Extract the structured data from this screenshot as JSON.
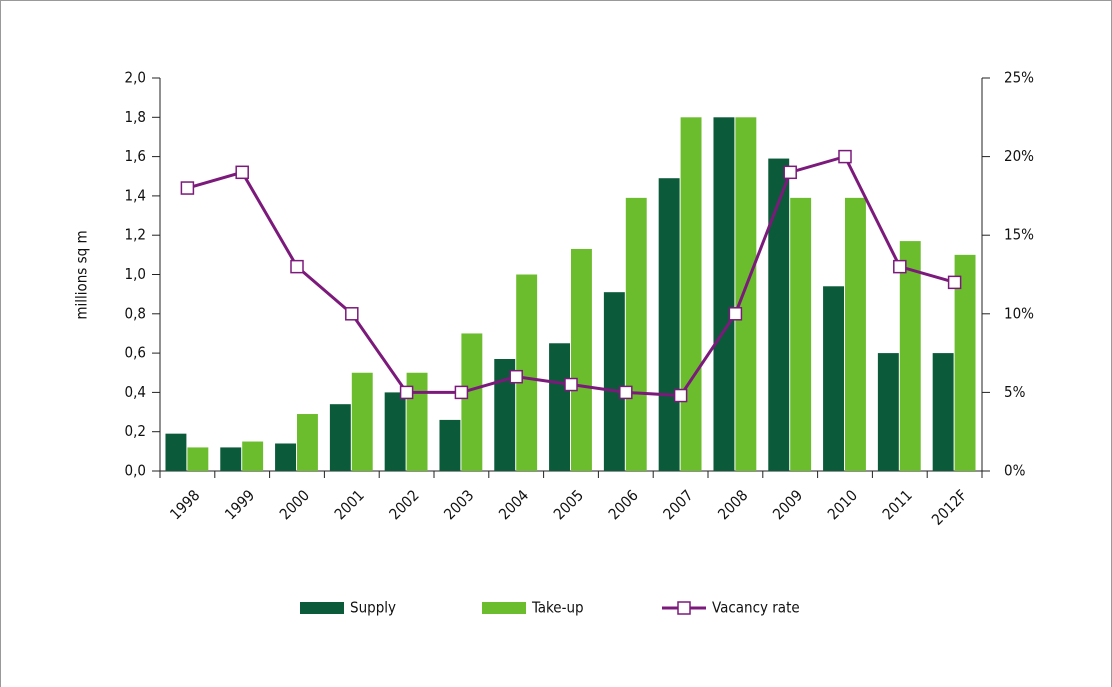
{
  "chart_data": {
    "type": "bar-line",
    "y_label": "millions sq m",
    "categories": [
      "1998",
      "1999",
      "2000",
      "2001",
      "2002",
      "2003",
      "2004",
      "2005",
      "2006",
      "2007",
      "2008",
      "2009",
      "2010",
      "2011",
      "2012F"
    ],
    "series": [
      {
        "name": "Supply",
        "type": "bar",
        "color": "#0b5a3a",
        "values": [
          0.19,
          0.12,
          0.14,
          0.34,
          0.4,
          0.26,
          0.57,
          0.65,
          0.91,
          1.49,
          1.8,
          1.59,
          0.94,
          0.6,
          0.6
        ]
      },
      {
        "name": "Take-up",
        "type": "bar",
        "color": "#6cbd2e",
        "values": [
          0.12,
          0.15,
          0.29,
          0.5,
          0.5,
          0.7,
          1.0,
          1.13,
          1.39,
          1.8,
          1.8,
          1.39,
          1.39,
          1.17,
          1.1
        ]
      },
      {
        "name": "Vacancy rate",
        "type": "line",
        "axis": "y2",
        "color": "#7b1a7b",
        "values": [
          18,
          19,
          13,
          10,
          5,
          5,
          6,
          5.5,
          5,
          4.8,
          10,
          19,
          20,
          13,
          12
        ]
      }
    ],
    "ylim": [
      0,
      2
    ],
    "yticks": [
      {
        "value": 0,
        "label": "0,0"
      },
      {
        "value": 0.2,
        "label": "0,2"
      },
      {
        "value": 0.4,
        "label": "0,4"
      },
      {
        "value": 0.6,
        "label": "0,6"
      },
      {
        "value": 0.8,
        "label": "0,8"
      },
      {
        "value": 1,
        "label": "1,0"
      },
      {
        "value": 1.2,
        "label": "1,2"
      },
      {
        "value": 1.4,
        "label": "1,4"
      },
      {
        "value": 1.6,
        "label": "1,6"
      },
      {
        "value": 1.8,
        "label": "1,8"
      },
      {
        "value": 2,
        "label": "2,0"
      }
    ],
    "y2lim": [
      0,
      25
    ],
    "y2ticks": [
      {
        "value": 0,
        "label": "0%"
      },
      {
        "value": 5,
        "label": "5%"
      },
      {
        "value": 10,
        "label": "10%"
      },
      {
        "value": 15,
        "label": "15%"
      },
      {
        "value": 20,
        "label": "20%"
      },
      {
        "value": 25,
        "label": "25%"
      }
    ],
    "grid": false
  }
}
